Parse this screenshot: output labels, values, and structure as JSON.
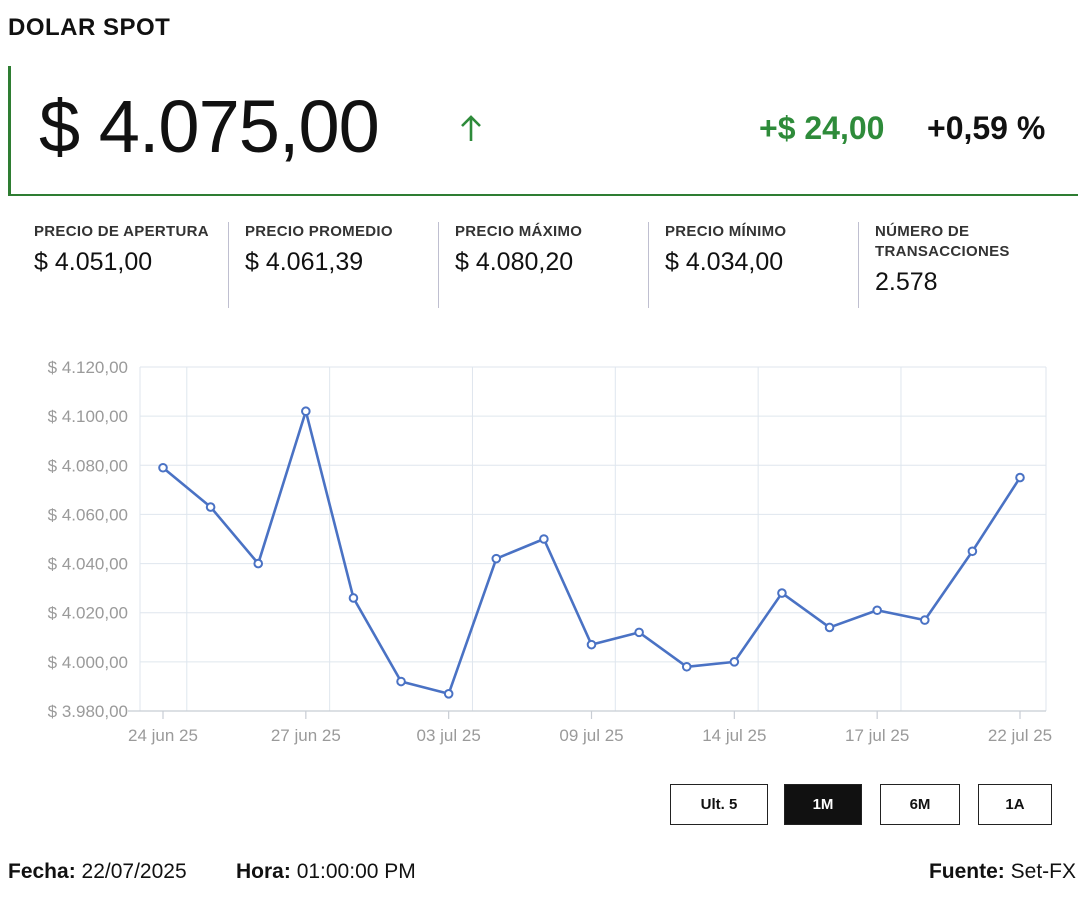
{
  "header": {
    "title": "DOLAR SPOT"
  },
  "price": {
    "value": "$ 4.075,00",
    "change": "+$ 24,00",
    "change_pct": "+0,59 %",
    "direction_icon": "arrow-up-icon",
    "up_color": "#2e8b3a"
  },
  "stats": [
    {
      "label": "PRECIO DE APERTURA",
      "value": "$ 4.051,00"
    },
    {
      "label": "PRECIO PROMEDIO",
      "value": "$ 4.061,39"
    },
    {
      "label": "PRECIO MÁXIMO",
      "value": "$ 4.080,20"
    },
    {
      "label": "PRECIO MÍNIMO",
      "value": "$ 4.034,00"
    },
    {
      "label": "NÚMERO DE TRANSACCIONES",
      "value": "2.578"
    }
  ],
  "chart_data": {
    "type": "line",
    "series": [
      {
        "values": [
          4079,
          4063,
          4040,
          4102,
          4026,
          3992,
          3987,
          4042,
          4050,
          4007,
          4012,
          3998,
          4000,
          4028,
          4014,
          4021,
          4017,
          4045,
          4075
        ]
      }
    ],
    "x_positions": [
      0,
      1,
      2,
      3,
      4,
      5,
      6,
      7,
      8,
      9,
      10,
      11,
      12,
      13,
      14,
      15,
      16,
      17,
      18
    ],
    "x_tick_labels": [
      "24 jun 25",
      "27 jun 25",
      "03 jul 25",
      "09 jul 25",
      "14 jul 25",
      "17 jul 25",
      "22 jul 25"
    ],
    "x_tick_indices": [
      0,
      3,
      6,
      9,
      12,
      15,
      18
    ],
    "y_tick_labels": [
      "$ 4.120,00",
      "$ 4.100,00",
      "$ 4.080,00",
      "$ 4.060,00",
      "$ 4.040,00",
      "$ 4.020,00",
      "$ 4.000,00",
      "$ 3.980,00"
    ],
    "y_ticks": [
      4120,
      4100,
      4080,
      4060,
      4040,
      4020,
      4000,
      3980
    ],
    "ylim": [
      3980,
      4120
    ],
    "grid": true,
    "line_color": "#4a72c4"
  },
  "ranges": {
    "buttons": [
      "Ult. 5",
      "1M",
      "6M",
      "1A"
    ],
    "active": "1M"
  },
  "footer": {
    "date_label": "Fecha:",
    "date_value": "22/07/2025",
    "time_label": "Hora:",
    "time_value": "01:00:00 PM",
    "source_label": "Fuente:",
    "source_value": "Set-FX"
  }
}
